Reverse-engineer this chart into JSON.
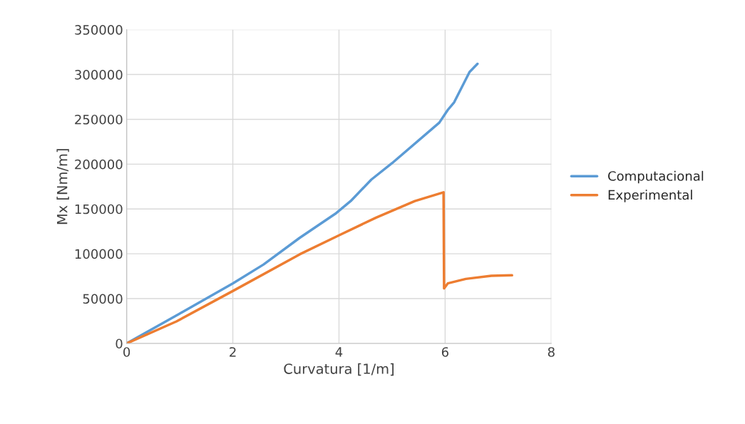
{
  "chart_data": {
    "type": "line",
    "xlabel": "Curvatura [1/m]",
    "ylabel": "Mx [Nm/m]",
    "xlim": [
      0,
      8
    ],
    "xticks": [
      0,
      2,
      4,
      6,
      8
    ],
    "ylim": [
      0,
      350000
    ],
    "yticks": [
      0,
      50000,
      100000,
      150000,
      200000,
      250000,
      300000,
      350000
    ],
    "grid": true,
    "legend": "right",
    "marker": "none",
    "line_style": "solid",
    "series": [
      {
        "name": "Computacional",
        "color": "#5b9bd5",
        "x": [
          0,
          0.99,
          2,
          2.58,
          3.26,
          3.93,
          4.22,
          4.61,
          5.0,
          5.89,
          6.05,
          6.17,
          6.46,
          6.61
        ],
        "values": [
          0,
          33000,
          67000,
          88100,
          117800,
          144600,
          158800,
          182800,
          201100,
          246300,
          260500,
          269000,
          302800,
          311900
        ]
      },
      {
        "name": "Experimental",
        "color": "#ed7d31",
        "x": [
          0,
          0.94,
          2,
          3.26,
          4,
          4.7,
          5.43,
          5.97,
          5.98,
          6.05,
          6.39,
          6.87,
          7.26
        ],
        "values": [
          0,
          24600,
          58500,
          99400,
          120600,
          140400,
          158800,
          168600,
          61300,
          67000,
          72000,
          75400,
          76000
        ]
      }
    ]
  }
}
